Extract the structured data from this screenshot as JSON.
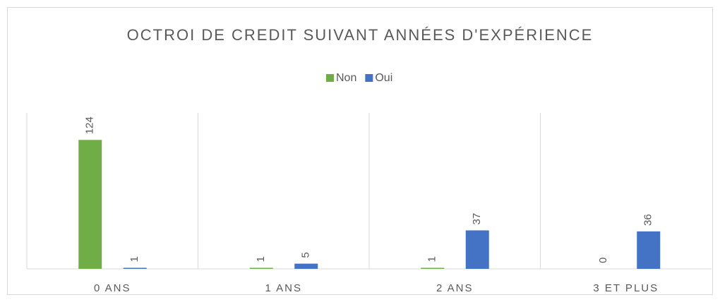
{
  "chart_data": {
    "type": "bar",
    "title": "OCTROI DE CREDIT SUIVANT ANNÉES D'EXPÉRIENCE",
    "categories": [
      "0 ANS",
      "1 ANS",
      "2 ANS",
      "3 ET PLUS"
    ],
    "series": [
      {
        "name": "Non",
        "color": "#70ad47",
        "values": [
          124,
          1,
          1,
          0
        ]
      },
      {
        "name": "Oui",
        "color": "#4472c4",
        "values": [
          1,
          5,
          37,
          36
        ]
      }
    ],
    "ylim": [
      0,
      150
    ]
  }
}
